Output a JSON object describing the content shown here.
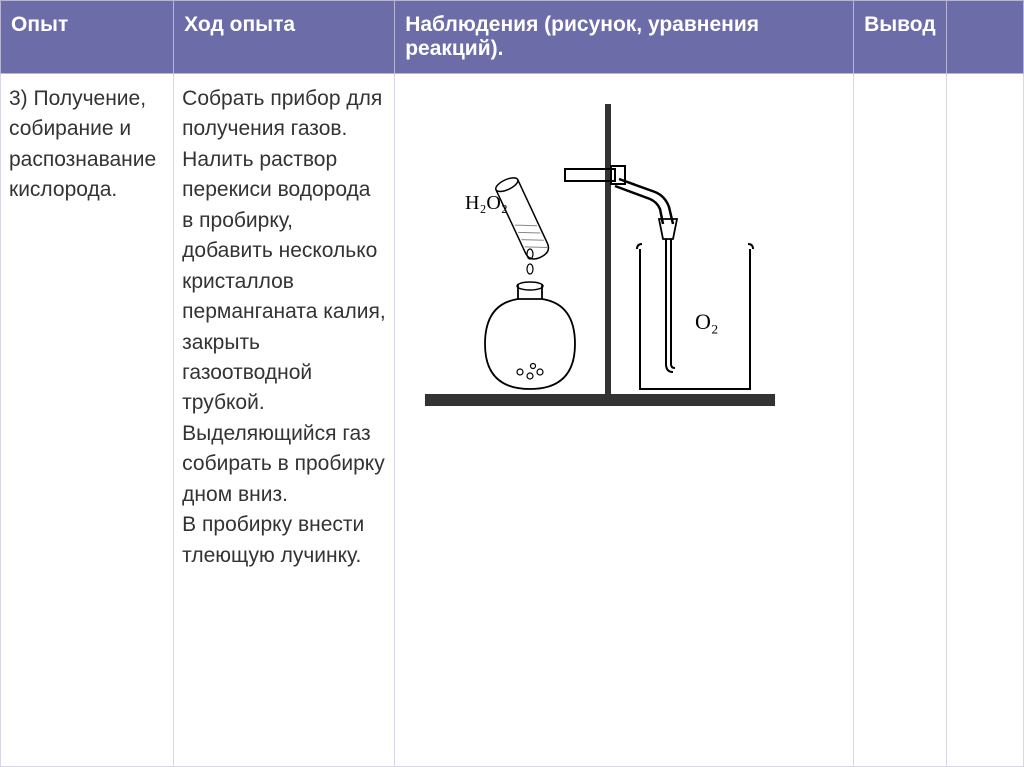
{
  "headers": {
    "col1": "Опыт",
    "col2": "Ход опыта",
    "col3": "Наблюдения (рисунок, уравнения реакций).",
    "col4": "Вывод",
    "col5": ""
  },
  "row": {
    "experiment": "3) Получение, собирание и распознавание кислорода.",
    "procedure": "Собрать прибор для получения газов. Налить раствор перекиси водорода в пробирку, добавить несколько кристаллов перманганата калия, закрыть газоотводной трубкой. Выделяющийся газ собирать в пробирку дном вниз.\nВ пробирку внести тлеющую лучинку.",
    "observations": "",
    "conclusion": ""
  },
  "diagram": {
    "label_h2o2": "H₂O₂",
    "label_o2": "O₂",
    "colors": {
      "line": "#000000",
      "fill_light": "#f5f5f5",
      "hatching": "#888888"
    }
  },
  "theme": {
    "header_bg": "#6c6ca8",
    "header_text": "#ffffff",
    "cell_bg": "#ffffff",
    "page_bg": "#d9d6e8",
    "border": "#b8b4d6",
    "text": "#333333",
    "header_fontsize": 21,
    "body_fontsize": 21
  },
  "layout": {
    "widths_pct": [
      17,
      22,
      45,
      8,
      8
    ]
  }
}
